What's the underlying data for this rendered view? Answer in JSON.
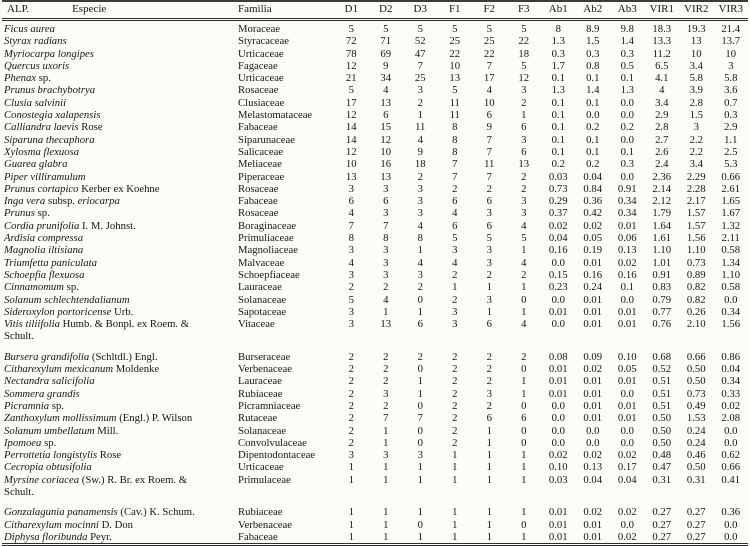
{
  "header": {
    "col1_label_left": "ALP.",
    "col1_label": "Especie",
    "col2_label": "Familia",
    "numeric_cols": [
      "D1",
      "D2",
      "D3",
      "F1",
      "F2",
      "F3",
      "Ab1",
      "Ab2",
      "Ab3",
      "VIR1",
      "VIR2",
      "VIR3"
    ]
  },
  "rows": [
    {
      "especie": [
        {
          "text": "Ficus aurea",
          "italic": true
        }
      ],
      "familia": "Moraceae",
      "values": [
        "5",
        "5",
        "5",
        "5",
        "5",
        "5",
        "8",
        "8.9",
        "9.8",
        "18.3",
        "19.3",
        "21.4"
      ]
    },
    {
      "especie": [
        {
          "text": "Styrax radians",
          "italic": true
        }
      ],
      "familia": "Styracaceae",
      "values": [
        "72",
        "71",
        "52",
        "25",
        "25",
        "22",
        "1.3",
        "1.5",
        "1.4",
        "13.3",
        "13",
        "13.7"
      ]
    },
    {
      "especie": [
        {
          "text": "Myriocarpa longipes",
          "italic": true
        }
      ],
      "familia": "Urticaceae",
      "values": [
        "78",
        "69",
        "47",
        "22",
        "22",
        "18",
        "0.3",
        "0.3",
        "0.3",
        "11.2",
        "10",
        "10"
      ]
    },
    {
      "especie": [
        {
          "text": "Quercus uxoris",
          "italic": true
        }
      ],
      "familia": "Fagaceae",
      "values": [
        "12",
        "9",
        "7",
        "10",
        "7",
        "5",
        "1.7",
        "0.8",
        "0.5",
        "6.5",
        "3.4",
        "3"
      ]
    },
    {
      "especie": [
        {
          "text": "Phenax",
          "italic": true
        },
        {
          "text": " sp.",
          "italic": false
        }
      ],
      "familia": "Urticaceae",
      "values": [
        "21",
        "34",
        "25",
        "13",
        "17",
        "12",
        "0.1",
        "0.1",
        "0.1",
        "4.1",
        "5.8",
        "5.8"
      ]
    },
    {
      "especie": [
        {
          "text": "Prunus brachybotrya",
          "italic": true
        }
      ],
      "familia": "Rosaceae",
      "values": [
        "5",
        "4",
        "3",
        "5",
        "4",
        "3",
        "1.3",
        "1.4",
        "1.3",
        "4",
        "3.9",
        "3.6"
      ]
    },
    {
      "especie": [
        {
          "text": "Clusia salvinii",
          "italic": true
        }
      ],
      "familia": "Clusiaceae",
      "values": [
        "17",
        "13",
        "2",
        "11",
        "10",
        "2",
        "0.1",
        "0.1",
        "0.0",
        "3.4",
        "2.8",
        "0.7"
      ]
    },
    {
      "especie": [
        {
          "text": "Conostegia xalapensis",
          "italic": true
        }
      ],
      "familia": "Melastomataceae",
      "values": [
        "12",
        "6",
        "1",
        "11",
        "6",
        "1",
        "0.1",
        "0.0",
        "0.0",
        "2.9",
        "1.5",
        "0.3"
      ]
    },
    {
      "especie": [
        {
          "text": "Calliandra laevis",
          "italic": true
        },
        {
          "text": " Rose",
          "italic": false
        }
      ],
      "familia": "Fabaceae",
      "values": [
        "14",
        "15",
        "11",
        "8",
        "9",
        "6",
        "0.1",
        "0.2",
        "0.2",
        "2.8",
        "3",
        "2.9"
      ]
    },
    {
      "especie": [
        {
          "text": "Siparuna thecaphora",
          "italic": true
        }
      ],
      "familia": "Siparunaceae",
      "values": [
        "14",
        "12",
        "4",
        "8",
        "7",
        "3",
        "0.1",
        "0.1",
        "0.0",
        "2.7",
        "2.2",
        "1.1"
      ]
    },
    {
      "especie": [
        {
          "text": "Xylosma flexuosa",
          "italic": true
        }
      ],
      "familia": "Salicaceae",
      "values": [
        "12",
        "10",
        "9",
        "8",
        "7",
        "6",
        "0.1",
        "0.1",
        "0.1",
        "2.6",
        "2.2",
        "2.5"
      ]
    },
    {
      "especie": [
        {
          "text": "Guarea glabra",
          "italic": true
        }
      ],
      "familia": "Meliaceae",
      "values": [
        "10",
        "16",
        "18",
        "7",
        "11",
        "13",
        "0.2",
        "0.2",
        "0.3",
        "2.4",
        "3.4",
        "5.3"
      ]
    },
    {
      "especie": [
        {
          "text": "Piper villiramulum",
          "italic": true
        }
      ],
      "familia": "Piperaceae",
      "values": [
        "13",
        "13",
        "2",
        "7",
        "7",
        "2",
        "0.03",
        "0.04",
        "0.0",
        "2.36",
        "2.29",
        "0.66"
      ]
    },
    {
      "especie": [
        {
          "text": "Prunus cortapico",
          "italic": true
        },
        {
          "text": " Kerber ex Koehne",
          "italic": false
        }
      ],
      "familia": "Rosaceae",
      "values": [
        "3",
        "3",
        "3",
        "2",
        "2",
        "2",
        "0.73",
        "0.84",
        "0.91",
        "2.14",
        "2.28",
        "2.61"
      ]
    },
    {
      "especie": [
        {
          "text": "Inga vera",
          "italic": true
        },
        {
          "text": " subsp. ",
          "italic": false
        },
        {
          "text": "eriocarpa",
          "italic": true
        }
      ],
      "familia": "Fabaceae",
      "values": [
        "6",
        "6",
        "3",
        "6",
        "6",
        "3",
        "0.29",
        "0.36",
        "0.34",
        "2.12",
        "2.17",
        "1.65"
      ]
    },
    {
      "especie": [
        {
          "text": "Prunus",
          "italic": true
        },
        {
          "text": " sp.",
          "italic": false
        }
      ],
      "familia": "Rosaceae",
      "values": [
        "4",
        "3",
        "3",
        "4",
        "3",
        "3",
        "0.37",
        "0.42",
        "0.34",
        "1.79",
        "1.57",
        "1.67"
      ]
    },
    {
      "especie": [
        {
          "text": "Cordia prunifolia",
          "italic": true
        },
        {
          "text": " I. M. Johnst.",
          "italic": false
        }
      ],
      "familia": "Boraginaceae",
      "values": [
        "7",
        "7",
        "4",
        "6",
        "6",
        "4",
        "0.02",
        "0.02",
        "0.01",
        "1.64",
        "1.57",
        "1.32"
      ]
    },
    {
      "especie": [
        {
          "text": "Ardisia compressa",
          "italic": true
        }
      ],
      "familia": "Primuliaceae",
      "values": [
        "8",
        "8",
        "8",
        "5",
        "5",
        "5",
        "0.04",
        "0.05",
        "0.06",
        "1.61",
        "1.56",
        "2.11"
      ]
    },
    {
      "especie": [
        {
          "text": "Magnolia iltisiana",
          "italic": true
        }
      ],
      "familia": "Magnoliaceae",
      "values": [
        "3",
        "3",
        "1",
        "3",
        "3",
        "1",
        "0.16",
        "0.19",
        "0.13",
        "1.10",
        "1.10",
        "0.58"
      ]
    },
    {
      "especie": [
        {
          "text": "Triumfetta paniculata",
          "italic": true
        }
      ],
      "familia": "Malvaceae",
      "values": [
        "4",
        "3",
        "4",
        "4",
        "3",
        "4",
        "0.0",
        "0.01",
        "0.02",
        "1.01",
        "0.73",
        "1.34"
      ]
    },
    {
      "especie": [
        {
          "text": "Schoepfia flexuosa",
          "italic": true
        }
      ],
      "familia": "Schoepfiaceae",
      "values": [
        "3",
        "3",
        "3",
        "2",
        "2",
        "2",
        "0.15",
        "0.16",
        "0.16",
        "0.91",
        "0.89",
        "1.10"
      ]
    },
    {
      "especie": [
        {
          "text": "Cinnamomum",
          "italic": true
        },
        {
          "text": " sp.",
          "italic": false
        }
      ],
      "familia": "Lauraceae",
      "values": [
        "2",
        "2",
        "2",
        "1",
        "1",
        "1",
        "0.23",
        "0.24",
        "0.1",
        "0.83",
        "0.82",
        "0.58"
      ]
    },
    {
      "especie": [
        {
          "text": "Solanum schlechtendalianum",
          "italic": true
        }
      ],
      "familia": "Solanaceae",
      "values": [
        "5",
        "4",
        "0",
        "2",
        "3",
        "0",
        "0.0",
        "0.01",
        "0.0",
        "0.79",
        "0.82",
        "0.0"
      ]
    },
    {
      "especie": [
        {
          "text": "Sideroxylon portoricense",
          "italic": true
        },
        {
          "text": " Urb.",
          "italic": false
        }
      ],
      "familia": "Sapotaceae",
      "values": [
        "3",
        "1",
        "1",
        "3",
        "1",
        "1",
        "0.01",
        "0.01",
        "0.01",
        "0.77",
        "0.26",
        "0.34"
      ]
    },
    {
      "especie": [
        {
          "text": "Vitis tiliifolia",
          "italic": true
        },
        {
          "text": " Humb. & Bonpl. ex Roem. &\nSchult.",
          "italic": false
        }
      ],
      "familia": "Vitaceae",
      "gap_after": true,
      "values": [
        "3",
        "13",
        "6",
        "3",
        "6",
        "4",
        "0.0",
        "0.01",
        "0.01",
        "0.76",
        "2.10",
        "1.56"
      ]
    },
    {
      "especie": [
        {
          "text": "Bursera grandifolia",
          "italic": true
        },
        {
          "text": " (Schltdl.) Engl.",
          "italic": false
        }
      ],
      "familia": "Burseraceae",
      "values": [
        "2",
        "2",
        "2",
        "2",
        "2",
        "2",
        "0.08",
        "0.09",
        "0.10",
        "0.68",
        "0.66",
        "0.86"
      ]
    },
    {
      "especie": [
        {
          "text": "Citharexylum mexicanum",
          "italic": true
        },
        {
          "text": " Moldenke",
          "italic": false
        }
      ],
      "familia": "Verbenaceae",
      "values": [
        "2",
        "2",
        "0",
        "2",
        "2",
        "0",
        "0.01",
        "0.02",
        "0.05",
        "0.52",
        "0.50",
        "0.04"
      ]
    },
    {
      "especie": [
        {
          "text": "Nectandra salicifolia",
          "italic": true
        }
      ],
      "familia": "Lauraceae",
      "values": [
        "2",
        "2",
        "1",
        "2",
        "2",
        "1",
        "0.01",
        "0.01",
        "0.01",
        "0.51",
        "0.50",
        "0.34"
      ]
    },
    {
      "especie": [
        {
          "text": "Sommera grandis",
          "italic": true
        }
      ],
      "familia": "Rubiaceae",
      "values": [
        "2",
        "3",
        "1",
        "2",
        "3",
        "1",
        "0.01",
        "0.01",
        "0.0",
        "0.51",
        "0.73",
        "0.33"
      ]
    },
    {
      "especie": [
        {
          "text": "Picramnia",
          "italic": true
        },
        {
          "text": " sp.",
          "italic": false
        }
      ],
      "familia": "Picramniaceae",
      "values": [
        "2",
        "2",
        "0",
        "2",
        "2",
        "0",
        "0.0",
        "0.01",
        "0.01",
        "0.51",
        "0.49",
        "0.02"
      ]
    },
    {
      "especie": [
        {
          "text": "Zanthoxylum mollissimum",
          "italic": true
        },
        {
          "text": " (Engl.) P. Wilson",
          "italic": false
        }
      ],
      "familia": "Rutaceae",
      "values": [
        "2",
        "7",
        "7",
        "2",
        "6",
        "6",
        "0.0",
        "0.01",
        "0.01",
        "0.50",
        "1.53",
        "2.08"
      ]
    },
    {
      "especie": [
        {
          "text": "Solanum umbellatum",
          "italic": true
        },
        {
          "text": " Mill.",
          "italic": false
        }
      ],
      "familia": "Solanaceae",
      "values": [
        "2",
        "1",
        "0",
        "2",
        "1",
        "0",
        "0.0",
        "0.0",
        "0.0",
        "0.50",
        "0.24",
        "0.0"
      ]
    },
    {
      "especie": [
        {
          "text": "Ipomoea",
          "italic": true
        },
        {
          "text": " sp.",
          "italic": false
        }
      ],
      "familia": "Convolvulaceae",
      "values": [
        "2",
        "1",
        "0",
        "2",
        "1",
        "0",
        "0.0",
        "0.0",
        "0.0",
        "0.50",
        "0.24",
        "0.0"
      ]
    },
    {
      "especie": [
        {
          "text": "Perrottetia longistylis",
          "italic": true
        },
        {
          "text": " Rose",
          "italic": false
        }
      ],
      "familia": "Dipentodontaceae",
      "values": [
        "3",
        "3",
        "3",
        "1",
        "1",
        "1",
        "0.02",
        "0.02",
        "0.02",
        "0.48",
        "0.46",
        "0.62"
      ]
    },
    {
      "especie": [
        {
          "text": "Cecropia obtusifolia",
          "italic": true
        }
      ],
      "familia": "Urticaceae",
      "values": [
        "1",
        "1",
        "1",
        "1",
        "1",
        "1",
        "0.10",
        "0.13",
        "0.17",
        "0.47",
        "0.50",
        "0.66"
      ]
    },
    {
      "especie": [
        {
          "text": "Myrsine coriacea",
          "italic": true
        },
        {
          "text": " (Sw.) R. Br. ex Roem. &\nSchult.",
          "italic": false
        }
      ],
      "familia": "Primulaceae",
      "gap_after": true,
      "values": [
        "1",
        "1",
        "1",
        "1",
        "1",
        "1",
        "0.03",
        "0.04",
        "0.04",
        "0.31",
        "0.31",
        "0.41"
      ]
    },
    {
      "especie": [
        {
          "text": "Gonzalagunia panamensis",
          "italic": true
        },
        {
          "text": " (Cav.) K. Schum.",
          "italic": false
        }
      ],
      "familia": "Rubiaceae",
      "values": [
        "1",
        "1",
        "1",
        "1",
        "1",
        "1",
        "0.01",
        "0.02",
        "0.02",
        "0.27",
        "0.27",
        "0.36"
      ]
    },
    {
      "especie": [
        {
          "text": "Citharexylum mocinni",
          "italic": true
        },
        {
          "text": " D. Don",
          "italic": false
        }
      ],
      "familia": "Verbenaceae",
      "values": [
        "1",
        "1",
        "0",
        "1",
        "1",
        "0",
        "0.01",
        "0.01",
        "0.0",
        "0.27",
        "0.27",
        "0.0"
      ]
    },
    {
      "especie": [
        {
          "text": "Diphysa floribunda",
          "italic": true
        },
        {
          "text": " Peyr.",
          "italic": false
        }
      ],
      "familia": "Fabaceae",
      "values": [
        "1",
        "1",
        "1",
        "1",
        "1",
        "1",
        "0.01",
        "0.01",
        "0.02",
        "0.27",
        "0.27",
        "0.0"
      ]
    }
  ]
}
